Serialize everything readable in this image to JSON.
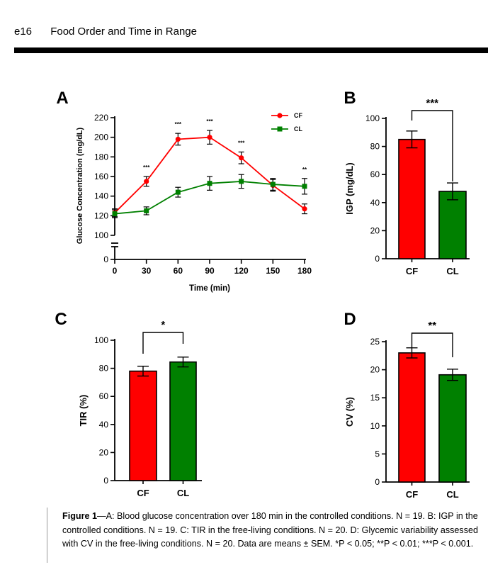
{
  "header": {
    "page": "e16",
    "title": "Food Order and Time in Range"
  },
  "colors": {
    "cf": "#ff0000",
    "cl": "#008000",
    "axis": "#000000"
  },
  "chart_data": [
    {
      "panel": "A",
      "type": "line",
      "xlabel": "Time (min)",
      "ylabel": "Glucose Concentration (mg/dL)",
      "x": [
        0,
        30,
        60,
        90,
        120,
        150,
        180
      ],
      "xticks": [
        "0",
        "30",
        "60",
        "90",
        "120",
        "150",
        "180"
      ],
      "yticks": [
        "220",
        "200",
        "180",
        "160",
        "140",
        "120",
        "100",
        "0"
      ],
      "ylim": [
        100,
        220
      ],
      "axis_break": true,
      "legend": "top-right",
      "series": [
        {
          "name": "CF",
          "values": [
            123,
            155,
            198,
            200,
            179,
            151,
            127
          ],
          "sem": [
            4,
            5,
            6,
            7,
            6,
            6,
            5
          ]
        },
        {
          "name": "CL",
          "values": [
            122,
            125,
            144,
            153,
            155,
            152,
            150
          ],
          "sem": [
            4,
            4,
            5,
            7,
            7,
            6,
            8
          ]
        }
      ],
      "annotations": [
        {
          "x": 30,
          "text": "***"
        },
        {
          "x": 60,
          "text": "***"
        },
        {
          "x": 90,
          "text": "***"
        },
        {
          "x": 120,
          "text": "***"
        },
        {
          "x": 180,
          "text": "**"
        }
      ]
    },
    {
      "panel": "B",
      "type": "bar",
      "categories": [
        "CF",
        "CL"
      ],
      "values": [
        85,
        48
      ],
      "sem": [
        6,
        6
      ],
      "ylabel": "IGP (mg/dL)",
      "ylim": [
        0,
        100
      ],
      "yticks": [
        "0",
        "20",
        "40",
        "60",
        "80",
        "100"
      ],
      "significance": "***"
    },
    {
      "panel": "C",
      "type": "bar",
      "categories": [
        "CF",
        "CL"
      ],
      "values": [
        78,
        84.5
      ],
      "sem": [
        3.5,
        3.5
      ],
      "ylabel": "TIR (%)",
      "ylim": [
        0,
        100
      ],
      "yticks": [
        "0",
        "20",
        "40",
        "60",
        "80",
        "100"
      ],
      "significance": "*"
    },
    {
      "panel": "D",
      "type": "bar",
      "categories": [
        "CF",
        "CL"
      ],
      "values": [
        23,
        19.1
      ],
      "sem": [
        0.9,
        1.0
      ],
      "ylabel": "CV (%)",
      "ylim": [
        0,
        25
      ],
      "yticks": [
        "0",
        "5",
        "10",
        "15",
        "20",
        "25"
      ],
      "significance": "**"
    }
  ],
  "caption": {
    "label": "Figure 1",
    "text": "—A: Blood glucose concentration over 180 min in the controlled conditions. N = 19. B: IGP in the controlled conditions. N = 19. C: TIR in the free-living conditions. N = 20. D: Glycemic variability assessed with CV in the free-living conditions. N = 20. Data are means ± SEM. *P < 0.05; **P < 0.01; ***P < 0.001."
  }
}
